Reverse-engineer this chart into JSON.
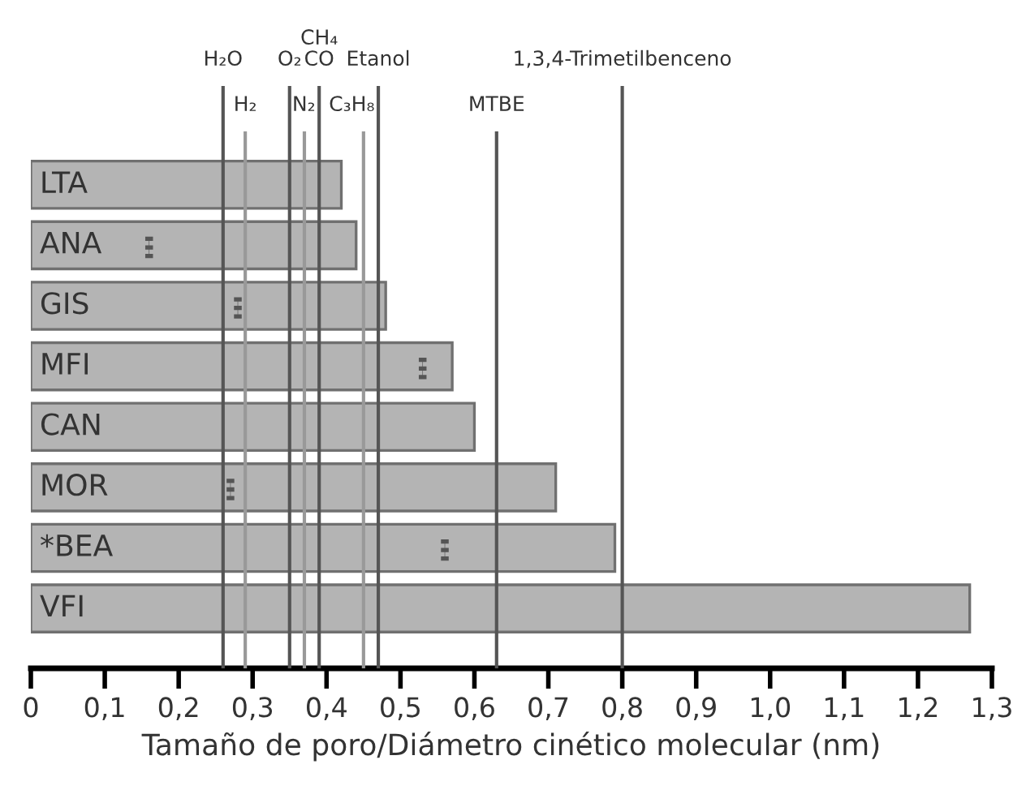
{
  "chart_data": {
    "type": "bar",
    "orientation": "horizontal",
    "categories": [
      "LTA",
      "ANA",
      "GIS",
      "MFI",
      "CAN",
      "MOR",
      "*BEA",
      "VFI"
    ],
    "series": [
      {
        "color": "#b4b4b4",
        "values": [
          0.42,
          0.44,
          0.48,
          0.57,
          0.6,
          0.71,
          0.79,
          1.27
        ]
      },
      {
        "type": "scatter",
        "color": "#555555",
        "line_style": "dotted",
        "values": [
          null,
          0.16,
          0.28,
          0.53,
          null,
          0.27,
          0.56,
          null
        ]
      }
    ],
    "xlabel": "Tamaño de poro/Diámetro cinético molecular (nm)",
    "xlim": [
      0,
      1.3
    ],
    "xticks": [
      0,
      {
        "value": 0.1,
        "label": "0,1"
      },
      {
        "value": 0.2,
        "label": "0,2"
      },
      {
        "value": 0.3,
        "label": "0,3"
      },
      {
        "value": 0.4,
        "label": "0,4"
      },
      {
        "value": 0.5,
        "label": "0,5"
      },
      {
        "value": 0.6,
        "label": "0,6"
      },
      {
        "value": 0.7,
        "label": "0,7"
      },
      {
        "value": 0.8,
        "label": "0,8"
      },
      {
        "value": 0.9,
        "label": "0,9"
      },
      {
        "value": 1.0,
        "label": "1,0"
      },
      {
        "value": 1.1,
        "label": "1,1"
      },
      {
        "value": 1.2,
        "label": "1,2"
      },
      {
        "value": 1.3,
        "label": "1,3"
      }
    ],
    "ref_lines": [
      {
        "axis": "x",
        "value": 0.26,
        "label": "H₂O",
        "color": "#555555"
      },
      {
        "axis": "x",
        "value": 0.29,
        "label": "H₂",
        "color": "#999999"
      },
      {
        "axis": "x",
        "value": 0.35,
        "label": "O₂",
        "color": "#555555"
      },
      {
        "axis": "x",
        "value": 0.37,
        "label": "N₂",
        "color": "#999999"
      },
      {
        "axis": "x",
        "value": 0.39,
        "label": "CH₄\nCO",
        "color": "#555555"
      },
      {
        "axis": "x",
        "value": 0.45,
        "label": "C₃H₈",
        "color": "#999999"
      },
      {
        "axis": "x",
        "value": 0.47,
        "label": "Etanol",
        "color": "#555555"
      },
      {
        "axis": "x",
        "value": 0.63,
        "label": "MTBE",
        "color": "#555555"
      },
      {
        "axis": "x",
        "value": 0.8,
        "label": "1,3,4-Trimetilbenceno",
        "color": "#555555"
      }
    ],
    "grid": false,
    "legend": false
  }
}
